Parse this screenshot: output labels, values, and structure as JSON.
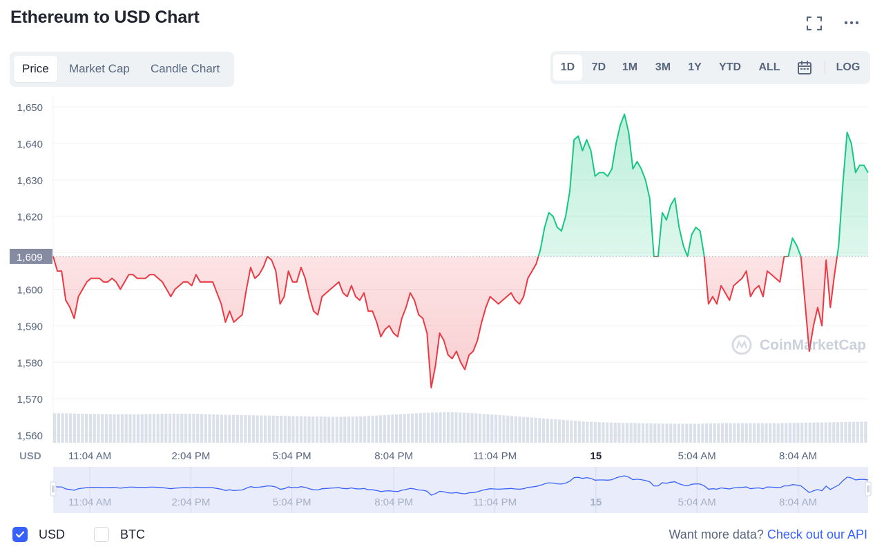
{
  "title": "Ethereum to USD Chart",
  "tabs": [
    {
      "label": "Price",
      "active": true
    },
    {
      "label": "Market Cap",
      "active": false
    },
    {
      "label": "Candle Chart",
      "active": false
    }
  ],
  "ranges": [
    {
      "label": "1D",
      "active": true
    },
    {
      "label": "7D",
      "active": false
    },
    {
      "label": "1M",
      "active": false
    },
    {
      "label": "3M",
      "active": false
    },
    {
      "label": "1Y",
      "active": false
    },
    {
      "label": "YTD",
      "active": false
    },
    {
      "label": "ALL",
      "active": false
    }
  ],
  "log_label": "LOG",
  "currency_toggles": {
    "usd": {
      "label": "USD",
      "checked": true
    },
    "btc": {
      "label": "BTC",
      "checked": false
    }
  },
  "footer": {
    "prompt": "Want more data?",
    "link": "Check out our API"
  },
  "colors": {
    "up": "#16c784",
    "down": "#ea3943",
    "accent": "#3861fb",
    "grid": "#eff2f5",
    "volume": "#cfd6e4"
  },
  "icons": {
    "fullscreen": "fullscreen-icon",
    "more": "more-horizontal-icon",
    "calendar": "calendar-icon",
    "check": "check-icon",
    "watermark": "coinmarketcap-logo-icon"
  },
  "chart_data": {
    "type": "line",
    "ylabel": "USD",
    "ylim": [
      1555,
      1652
    ],
    "yticks": [
      1650,
      1640,
      1630,
      1620,
      1610,
      1600,
      1590,
      1580,
      1570,
      1560
    ],
    "baseline": 1609,
    "baseline_label": "1,609",
    "xlabels": [
      "11:04 AM",
      "2:04 PM",
      "5:04 PM",
      "8:04 PM",
      "11:04 PM",
      "15",
      "5:04 AM",
      "8:04 AM"
    ],
    "xlabel_pos": [
      0.045,
      0.169,
      0.293,
      0.418,
      0.542,
      0.666,
      0.79,
      0.914
    ],
    "grid": true,
    "watermark": "CoinMarketCap",
    "series": [
      {
        "values": [
          1609,
          1605,
          1605,
          1597,
          1595,
          1592,
          1598,
          1600,
          1602,
          1603,
          1603,
          1603,
          1602,
          1602,
          1603,
          1602,
          1600,
          1602,
          1604,
          1604,
          1603,
          1603,
          1603,
          1604,
          1604,
          1603,
          1602,
          1600,
          1598,
          1600,
          1601,
          1602,
          1602,
          1601,
          1604,
          1602,
          1602,
          1602,
          1602,
          1599,
          1596,
          1591,
          1594,
          1591,
          1592,
          1593,
          1600,
          1606,
          1603,
          1604,
          1606,
          1609,
          1608,
          1605,
          1596,
          1598,
          1605,
          1602,
          1602,
          1606,
          1603,
          1598,
          1594,
          1593,
          1598,
          1599,
          1600,
          1601,
          1602,
          1599,
          1598,
          1601,
          1598,
          1597,
          1599,
          1594,
          1594,
          1591,
          1587,
          1589,
          1590,
          1588,
          1587,
          1592,
          1595,
          1599,
          1597,
          1593,
          1592,
          1588,
          1573,
          1579,
          1588,
          1586,
          1582,
          1581,
          1583,
          1580,
          1578,
          1582,
          1583,
          1586,
          1591,
          1595,
          1598,
          1597,
          1596,
          1597,
          1598,
          1599,
          1597,
          1596,
          1598,
          1603,
          1605,
          1607,
          1611,
          1617,
          1621,
          1620,
          1617,
          1616,
          1620,
          1627,
          1641,
          1642,
          1638,
          1641,
          1638,
          1631,
          1632,
          1632,
          1631,
          1633,
          1640,
          1645,
          1648,
          1643,
          1633,
          1635,
          1633,
          1630,
          1625,
          1609,
          1609,
          1621,
          1619,
          1623,
          1625,
          1617,
          1612,
          1609,
          1615,
          1617,
          1616,
          1609,
          1596,
          1598,
          1596,
          1601,
          1599,
          1597,
          1601,
          1602,
          1603,
          1605,
          1598,
          1600,
          1601,
          1598,
          1605,
          1604,
          1603,
          1602,
          1609,
          1609,
          1614,
          1612,
          1609,
          1596,
          1583,
          1590,
          1595,
          1590,
          1608,
          1595,
          1604,
          1612,
          1629,
          1643,
          1640,
          1632,
          1634,
          1634,
          1632
        ]
      }
    ],
    "volume": [
      0.56,
      0.55,
      0.54,
      0.54,
      0.55,
      0.55,
      0.53,
      0.52,
      0.51,
      0.5,
      0.49,
      0.5,
      0.53,
      0.56,
      0.58,
      0.56,
      0.52,
      0.48,
      0.44,
      0.4,
      0.38,
      0.37,
      0.36,
      0.36,
      0.37,
      0.37,
      0.37,
      0.38,
      0.39,
      0.4
    ],
    "navigator": {
      "xlabels": [
        "11:04 AM",
        "2:04 PM",
        "5:04 PM",
        "8:04 PM",
        "11:04 PM",
        "15",
        "5:04 AM",
        "8:04 AM"
      ]
    }
  }
}
